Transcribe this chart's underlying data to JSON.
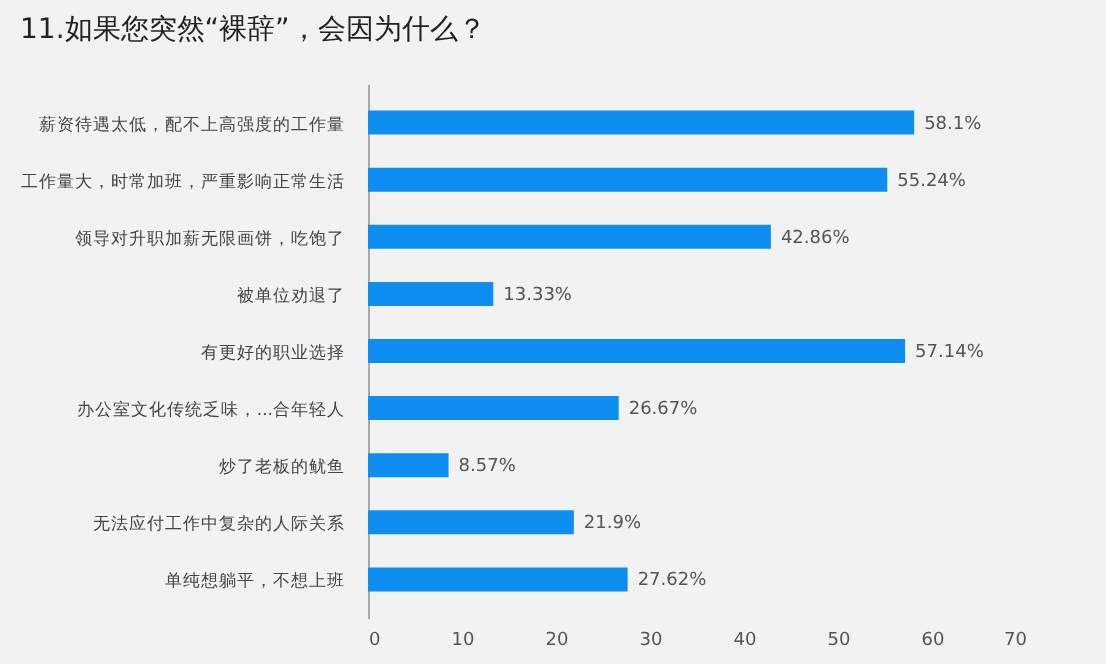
{
  "chart_data": {
    "type": "bar",
    "orientation": "horizontal",
    "title": "11.如果您突然“裸辞”，会因为什么？",
    "categories": [
      "薪资待遇太低，配不上高强度的工作量",
      "工作量大，时常加班，严重影响正常生活",
      "领导对升职加薪无限画饼，吃饱了",
      "被单位劝退了",
      "有更好的职业选择",
      "办公室文化传统乏味，...合年轻人",
      "炒了老板的鱿鱼",
      "无法应付工作中复杂的人际关系",
      "单纯想躺平，不想上班"
    ],
    "values": [
      58.1,
      55.24,
      42.86,
      13.33,
      57.14,
      26.67,
      8.57,
      21.9,
      27.62
    ],
    "value_labels": [
      "58.1%",
      "55.24%",
      "42.86%",
      "13.33%",
      "57.14%",
      "26.67%",
      "8.57%",
      "21.9%",
      "27.62%"
    ],
    "color": "#0d8ef0",
    "xlim": [
      0,
      70
    ],
    "xticks": [
      0,
      10,
      20,
      30,
      40,
      50,
      60,
      70
    ],
    "grid": false
  }
}
